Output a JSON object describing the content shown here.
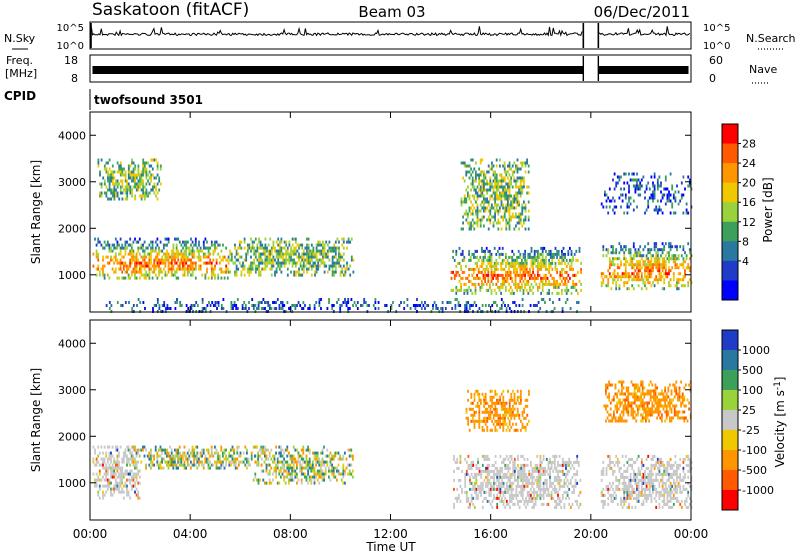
{
  "header": {
    "station": "Saskatoon (fitACF)",
    "beam": "Beam 03",
    "date": "06/Dec/2011"
  },
  "chart_data": [
    {
      "type": "line",
      "name": "nsky-nsearch",
      "left_label": "N.Sky",
      "right_label": "N.Search",
      "left_ticks": [
        "10^5",
        "10^0"
      ],
      "right_ticks": [
        "10^5",
        "10^0"
      ],
      "data_gap_hours": [
        [
          19.7,
          20.3
        ]
      ]
    },
    {
      "type": "line",
      "name": "frequency-nave",
      "left_label": "Freq.",
      "left_unit": "[MHz]",
      "right_label": "Nave",
      "left_ticks": [
        "18",
        "8"
      ],
      "right_ticks": [
        "60",
        "0"
      ],
      "data_gap_hours": [
        [
          19.7,
          20.3
        ]
      ]
    },
    {
      "type": "table",
      "name": "cpid",
      "label": "CPID",
      "program": "twofsound 3501"
    },
    {
      "type": "heatmap",
      "name": "power",
      "ylabel": "Slant Range [km]",
      "ylim": [
        200,
        4500
      ],
      "yticks": [
        "1000",
        "2000",
        "3000",
        "4000"
      ],
      "colorbar_label": "Power [dB]",
      "colorbar_ticks": [
        "28",
        "24",
        "20",
        "16",
        "12",
        "8",
        "4"
      ],
      "colorbar_colors": [
        "#ff0000",
        "#ff5a00",
        "#ff9600",
        "#f0c800",
        "#9ad23c",
        "#3ca05a",
        "#2878a0",
        "#1e3cc8",
        "#0000ff"
      ],
      "echo_regions": [
        {
          "t": [
            0.1,
            5.5
          ],
          "r": [
            900,
            1800
          ],
          "level": "strong"
        },
        {
          "t": [
            5.5,
            10.5
          ],
          "r": [
            1000,
            1800
          ],
          "level": "moderate"
        },
        {
          "t": [
            0.3,
            2.8
          ],
          "r": [
            2600,
            3500
          ],
          "level": "moderate"
        },
        {
          "t": [
            14.4,
            19.6
          ],
          "r": [
            600,
            1600
          ],
          "level": "strong"
        },
        {
          "t": [
            14.8,
            17.5
          ],
          "r": [
            2000,
            3500
          ],
          "level": "moderate"
        },
        {
          "t": [
            20.4,
            24.0
          ],
          "r": [
            700,
            1700
          ],
          "level": "strong"
        },
        {
          "t": [
            20.4,
            24.0
          ],
          "r": [
            2300,
            3200
          ],
          "level": "weak"
        },
        {
          "t": [
            0.5,
            19.6
          ],
          "r": [
            200,
            500
          ],
          "level": "weak"
        }
      ]
    },
    {
      "type": "heatmap",
      "name": "velocity",
      "ylabel": "Slant Range [km]",
      "ylim": [
        200,
        4500
      ],
      "yticks": [
        "1000",
        "2000",
        "3000",
        "4000"
      ],
      "colorbar_label": "Velocity [m s",
      "colorbar_unit_exp": "-1",
      "colorbar_unit_close": "]",
      "colorbar_ticks": [
        "1000",
        "500",
        "100",
        "25",
        "-25",
        "-100",
        "-500",
        "-1000"
      ],
      "colorbar_colors": [
        "#1e3cc8",
        "#2878a0",
        "#3ca05a",
        "#9ad23c",
        "#c8c8c8",
        "#f0c800",
        "#ff9600",
        "#ff5a00",
        "#ff0000"
      ],
      "echo_regions": [
        {
          "t": [
            0.1,
            2.0
          ],
          "r": [
            700,
            1800
          ],
          "level": "ground"
        },
        {
          "t": [
            1.5,
            7.0
          ],
          "r": [
            1300,
            1800
          ],
          "level": "mixed"
        },
        {
          "t": [
            6.5,
            10.5
          ],
          "r": [
            1000,
            1800
          ],
          "level": "mixed"
        },
        {
          "t": [
            14.5,
            19.6
          ],
          "r": [
            500,
            1600
          ],
          "level": "ground"
        },
        {
          "t": [
            15.0,
            17.5
          ],
          "r": [
            2100,
            3000
          ],
          "level": "away"
        },
        {
          "t": [
            20.4,
            24.0
          ],
          "r": [
            500,
            1600
          ],
          "level": "ground"
        },
        {
          "t": [
            20.5,
            24.0
          ],
          "r": [
            2300,
            3200
          ],
          "level": "away"
        }
      ]
    }
  ],
  "xaxis": {
    "ticks": [
      "00:00",
      "04:00",
      "08:00",
      "12:00",
      "16:00",
      "20:00",
      "00:00"
    ],
    "xlim_hours": [
      0,
      24
    ],
    "label": "Time UT"
  }
}
